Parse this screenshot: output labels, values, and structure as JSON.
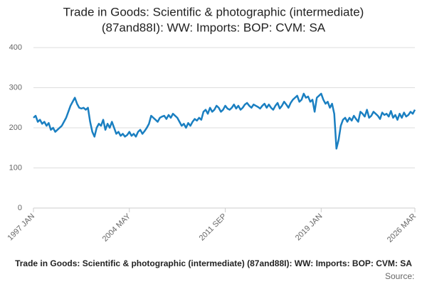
{
  "chart_data": {
    "type": "line",
    "title": [
      "Trade in Goods: Scientific & photographic (intermediate)",
      "(87and88I): WW: Imports: BOP: CVM: SA"
    ],
    "subtitle": "Trade in Goods: Scientific & photographic (intermediate) (87and88I): WW: Imports: BOP: CVM: SA",
    "source": "Source:",
    "categories": [
      "1997 JAN",
      null,
      null,
      null,
      null,
      null,
      null,
      null,
      null,
      null,
      null,
      null,
      null,
      null,
      null,
      null,
      null,
      null,
      null,
      null,
      null,
      null,
      null,
      null,
      null,
      null,
      null,
      null,
      null,
      null,
      null,
      null,
      null,
      null,
      null,
      null,
      null,
      null,
      null,
      null,
      null,
      null,
      null,
      null,
      "2004 MAY",
      null,
      null,
      null,
      null,
      null,
      null,
      null,
      null,
      null,
      null,
      null,
      null,
      null,
      null,
      null,
      null,
      null,
      null,
      null,
      null,
      null,
      null,
      null,
      null,
      null,
      null,
      null,
      null,
      null,
      null,
      null,
      null,
      null,
      null,
      null,
      null,
      null,
      null,
      null,
      null,
      null,
      null,
      null,
      "2011 SEP",
      null,
      null,
      null,
      null,
      null,
      null,
      null,
      null,
      null,
      null,
      null,
      null,
      null,
      null,
      null,
      null,
      null,
      null,
      null,
      null,
      null,
      null,
      null,
      null,
      null,
      null,
      null,
      null,
      null,
      null,
      null,
      null,
      null,
      null,
      null,
      null,
      null,
      null,
      null,
      null,
      null,
      null,
      null,
      "2019 JAN",
      null,
      null,
      null,
      null,
      null,
      null,
      null,
      null,
      null,
      null,
      null,
      null,
      null,
      null,
      null,
      null,
      null,
      null,
      null,
      null,
      null,
      null,
      null,
      null,
      null,
      null,
      null,
      null,
      null,
      null,
      null,
      null,
      null,
      null,
      null,
      null,
      null,
      null,
      null,
      null,
      null,
      null,
      "2026 MAR"
    ],
    "values": [
      225,
      230,
      215,
      220,
      210,
      215,
      205,
      212,
      195,
      200,
      190,
      195,
      200,
      205,
      215,
      225,
      240,
      255,
      265,
      275,
      260,
      250,
      248,
      250,
      245,
      250,
      215,
      190,
      178,
      200,
      210,
      205,
      220,
      195,
      210,
      200,
      215,
      200,
      185,
      190,
      180,
      185,
      178,
      182,
      190,
      180,
      185,
      178,
      190,
      195,
      185,
      192,
      200,
      210,
      230,
      225,
      220,
      215,
      225,
      228,
      230,
      222,
      232,
      225,
      235,
      230,
      225,
      215,
      205,
      210,
      200,
      212,
      205,
      215,
      222,
      218,
      225,
      220,
      240,
      245,
      235,
      250,
      240,
      245,
      255,
      250,
      240,
      245,
      255,
      248,
      245,
      250,
      258,
      248,
      255,
      245,
      250,
      258,
      262,
      255,
      250,
      258,
      255,
      252,
      248,
      255,
      260,
      250,
      258,
      250,
      245,
      255,
      262,
      248,
      255,
      265,
      258,
      250,
      262,
      270,
      275,
      280,
      265,
      270,
      285,
      275,
      278,
      265,
      270,
      240,
      275,
      280,
      285,
      270,
      260,
      265,
      250,
      260,
      235,
      148,
      170,
      205,
      220,
      225,
      215,
      225,
      218,
      230,
      222,
      215,
      240,
      235,
      228,
      245,
      225,
      230,
      240,
      235,
      230,
      222,
      238,
      232,
      235,
      228,
      242,
      225,
      232,
      220,
      235,
      225,
      238,
      228,
      232,
      240,
      235,
      245
    ],
    "color": "#1a7fc1",
    "ylim": [
      0,
      400
    ],
    "yticks": [
      0,
      100,
      200,
      300,
      400
    ],
    "grid": true
  }
}
